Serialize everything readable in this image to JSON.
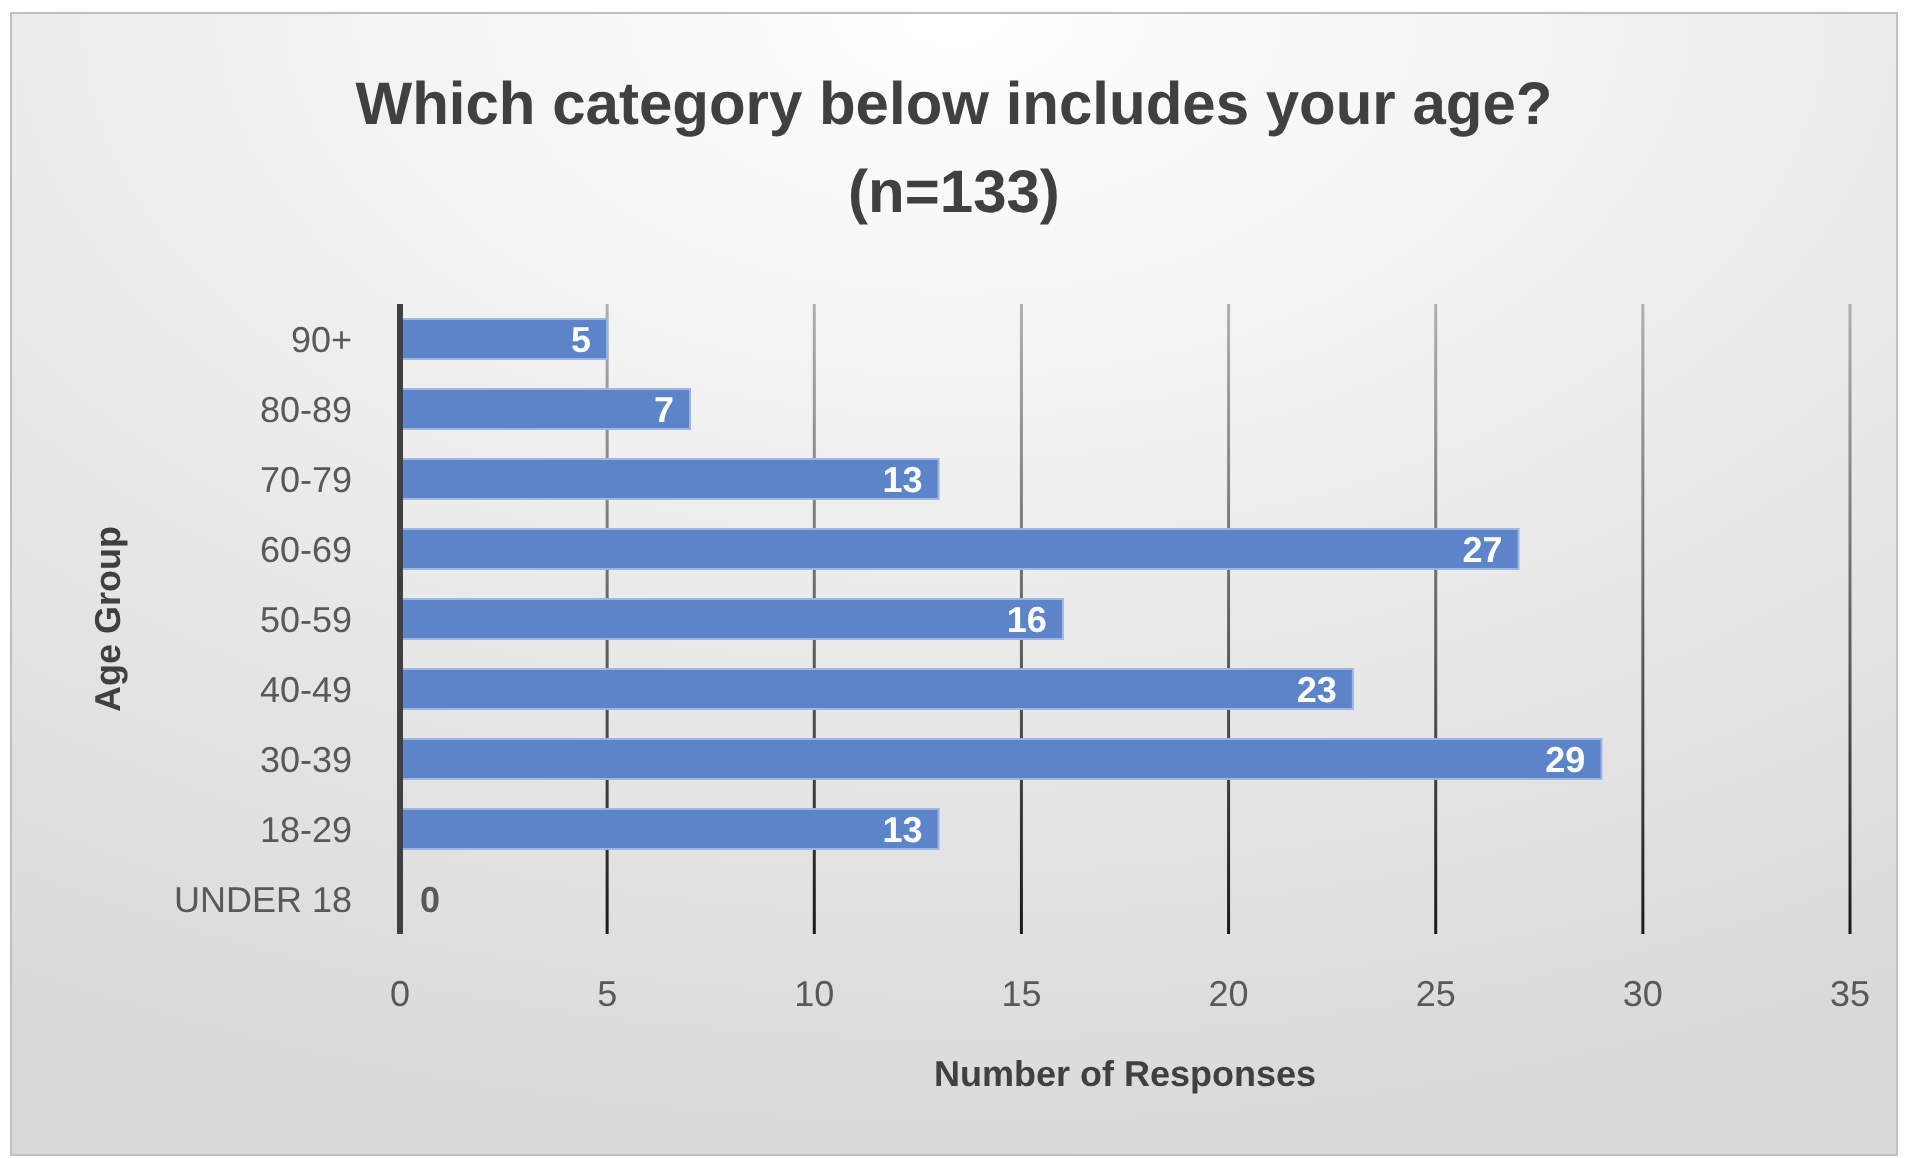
{
  "chart_data": {
    "type": "bar",
    "orientation": "horizontal",
    "title": "Which category below includes your age? (n=133)",
    "xlabel": "Number of Responses",
    "ylabel": "Age Group",
    "categories": [
      "90+",
      "80-89",
      "70-79",
      "60-69",
      "50-59",
      "40-49",
      "30-39",
      "18-29",
      "UNDER 18"
    ],
    "values": [
      5,
      7,
      13,
      27,
      16,
      23,
      29,
      13,
      0
    ],
    "color": "#5b84c9",
    "xlim": [
      0,
      35
    ],
    "xticks": [
      0,
      5,
      10,
      15,
      20,
      25,
      30,
      35
    ],
    "grid": "x",
    "data_labels": true
  }
}
